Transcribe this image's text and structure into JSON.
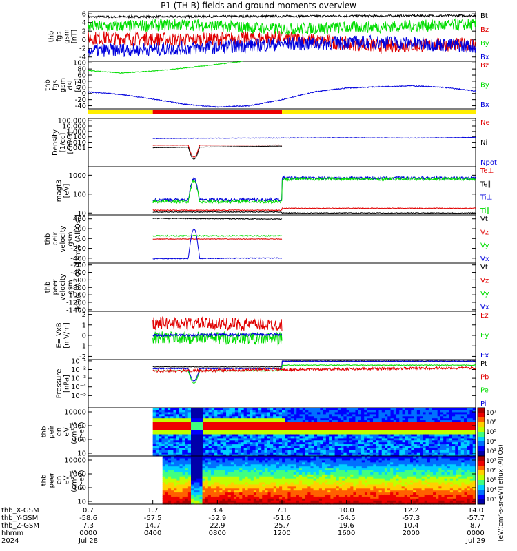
{
  "title": "P1 (TH-B) fields and ground moments overview",
  "colors": {
    "black": "#000000",
    "red": "#e00000",
    "green": "#00dd00",
    "blue": "#0000dd",
    "yellow": "#ffee00",
    "barred": "#ee0000"
  },
  "chart_data": [
    {
      "type": "line",
      "id": "fgs",
      "ylabel": [
        "thb",
        "fgs",
        "gsm",
        "[nT]"
      ],
      "ylim": [
        -5,
        6.5
      ],
      "ticks": [
        "6",
        "4",
        "2",
        "0",
        "-2",
        "-4"
      ],
      "tick_values": [
        6,
        4,
        2,
        0,
        -2,
        -4
      ],
      "legend": [
        {
          "label": "Bt",
          "color": "black"
        },
        {
          "label": "Bz",
          "color": "red"
        },
        {
          "label": "By",
          "color": "green"
        },
        {
          "label": "Bx",
          "color": "blue"
        }
      ],
      "series": [
        {
          "name": "Bt",
          "color": "black",
          "x": [
            0,
            24
          ],
          "y": [
            5.3,
            5.6
          ]
        },
        {
          "name": "Bz",
          "color": "red",
          "x": [
            0,
            6,
            12,
            18,
            24
          ],
          "y": [
            0.5,
            0.0,
            0.5,
            -1.5,
            -1.0
          ]
        },
        {
          "name": "By",
          "color": "green",
          "x": [
            0,
            6,
            12,
            18,
            24
          ],
          "y": [
            3.0,
            3.5,
            2.5,
            3.0,
            3.5
          ]
        },
        {
          "name": "Bx",
          "color": "blue",
          "x": [
            0,
            6,
            12,
            18,
            24
          ],
          "y": [
            -2.5,
            -2.0,
            -1.0,
            -0.5,
            -1.5
          ]
        }
      ]
    },
    {
      "type": "line",
      "id": "fgs-dsl",
      "ylabel": [
        "thb",
        "fgs",
        "gsm",
        "dsl",
        "[nT]"
      ],
      "ylim": [
        -50,
        105
      ],
      "ticks": [
        "100",
        "80",
        "60",
        "40",
        "20",
        "0",
        "-20",
        "-40"
      ],
      "tick_values": [
        100,
        80,
        60,
        40,
        20,
        0,
        -20,
        -40
      ],
      "legend": [
        {
          "label": "Bz",
          "color": "red"
        },
        {
          "label": "By",
          "color": "green"
        },
        {
          "label": "Bx",
          "color": "blue"
        }
      ],
      "series": [
        {
          "name": "By",
          "color": "green",
          "x": [
            0,
            2,
            4,
            6,
            8,
            9.6
          ],
          "y": [
            75,
            67,
            73,
            83,
            95,
            105
          ]
        },
        {
          "name": "Bx",
          "color": "blue",
          "x": [
            0,
            2,
            4,
            6,
            8,
            10,
            12,
            14,
            16,
            18,
            20,
            22,
            24
          ],
          "y": [
            5,
            -3,
            -18,
            -35,
            -44,
            -40,
            -20,
            5,
            18,
            22,
            25,
            20,
            8
          ]
        }
      ]
    },
    {
      "type": "line",
      "id": "density",
      "ylabel": [
        "Density",
        "[1/cc]",
        "[cm-3]"
      ],
      "log": true,
      "ylim": [
        -3.5,
        5.4
      ],
      "ticks": [
        "100.000",
        "10.000",
        "1.000",
        "0.100",
        "0.010",
        "0.001"
      ],
      "tick_values": [
        5,
        4,
        3,
        2,
        1,
        0
      ],
      "tick_offset": -3,
      "legend": [
        {
          "label": "Ne",
          "color": "red"
        },
        {
          "label": "Ni",
          "color": "black"
        },
        {
          "label": "Npot",
          "color": "blue"
        }
      ],
      "series": [
        {
          "name": "Npot",
          "color": "blue",
          "x": [
            4,
            7,
            12,
            16,
            20,
            24
          ],
          "y": [
            1.7,
            1.75,
            1.8,
            1.85,
            1.8,
            1.9
          ]
        },
        {
          "name": "Ne",
          "color": "red",
          "x": [
            4,
            12
          ],
          "y": [
            0.45,
            0.5
          ]
        },
        {
          "name": "Ni",
          "color": "black",
          "x": [
            4,
            12
          ],
          "y": [
            0.0,
            0.3
          ]
        }
      ]
    },
    {
      "type": "line",
      "id": "temp",
      "ylabel": [
        "magt3",
        "[eV]"
      ],
      "log": true,
      "ylim": [
        0.9,
        3.45
      ],
      "ticks": [
        "1000",
        "100",
        "10"
      ],
      "tick_values": [
        3,
        2,
        1
      ],
      "legend": [
        {
          "label": "Te⊥",
          "color": "red"
        },
        {
          "label": "Te∥",
          "color": "black"
        },
        {
          "label": "Ti⊥",
          "color": "blue"
        },
        {
          "label": "Ti∥",
          "color": "green"
        }
      ],
      "series": [
        {
          "name": "Ti⊥",
          "color": "blue",
          "x": [
            4,
            12,
            12,
            24
          ],
          "y": [
            1.7,
            1.7,
            2.85,
            2.85
          ]
        },
        {
          "name": "Ti∥",
          "color": "green",
          "x": [
            4,
            12,
            12,
            24
          ],
          "y": [
            1.6,
            1.6,
            2.8,
            2.8
          ]
        },
        {
          "name": "Te⊥",
          "color": "red",
          "x": [
            4,
            12,
            12,
            24
          ],
          "y": [
            1.15,
            1.15,
            1.25,
            1.25
          ]
        },
        {
          "name": "Te∥",
          "color": "black",
          "x": [
            4,
            12,
            12,
            24
          ],
          "y": [
            1.05,
            1.05,
            1.0,
            1.0
          ]
        }
      ]
    },
    {
      "type": "line",
      "id": "peir",
      "ylabel": [
        "thb",
        "peir",
        "velocity",
        "gsm",
        "[km/s (All Qs)]"
      ],
      "ylim": [
        -500,
        480
      ],
      "ticks": [
        "400",
        "200",
        "0",
        "-200",
        "-400"
      ],
      "tick_values": [
        400,
        200,
        0,
        -200,
        -400
      ],
      "legend": [
        {
          "label": "Vt",
          "color": "black"
        },
        {
          "label": "Vz",
          "color": "red"
        },
        {
          "label": "Vy",
          "color": "green"
        },
        {
          "label": "Vx",
          "color": "blue"
        }
      ],
      "series": [
        {
          "name": "Vt",
          "color": "black",
          "x": [
            4,
            12
          ],
          "y": [
            410,
            395
          ]
        },
        {
          "name": "Vy",
          "color": "green",
          "x": [
            4,
            12
          ],
          "y": [
            55,
            55
          ]
        },
        {
          "name": "Vz",
          "color": "red",
          "x": [
            4,
            12
          ],
          "y": [
            -10,
            -10
          ]
        },
        {
          "name": "Vx",
          "color": "blue",
          "x": [
            4,
            12
          ],
          "y": [
            -410,
            -395
          ]
        }
      ]
    },
    {
      "type": "line",
      "id": "peer",
      "ylabel": [
        "thb",
        "peer",
        "velocity",
        "gsm",
        "[km/s (All Qs)]"
      ],
      "ylim": [
        -1440,
        -150
      ],
      "ticks": [
        "-200",
        "-400",
        "-600",
        "-800",
        "-1000",
        "-1200",
        "-1400"
      ],
      "tick_values": [
        -200,
        -400,
        -600,
        -800,
        -1000,
        -1200,
        -1400
      ],
      "legend": [
        {
          "label": "Vt",
          "color": "black"
        },
        {
          "label": "Vz",
          "color": "red"
        },
        {
          "label": "Vy",
          "color": "green"
        },
        {
          "label": "Vx",
          "color": "blue"
        }
      ],
      "series": []
    },
    {
      "type": "line",
      "id": "efield",
      "ylabel": [
        "E=-VxB",
        "[mV/m]"
      ],
      "ylim": [
        -2.3,
        2.3
      ],
      "ticks": [
        "2",
        "1",
        "0",
        "-1",
        "-2"
      ],
      "tick_values": [
        2,
        1,
        0,
        -1,
        -2
      ],
      "legend": [
        {
          "label": "Ez",
          "color": "red"
        },
        {
          "label": "Ey",
          "color": "green"
        },
        {
          "label": "Ex",
          "color": "blue"
        }
      ],
      "series": [
        {
          "name": "Ez",
          "color": "red",
          "x": [
            4,
            12
          ],
          "y": [
            1.2,
            1.0
          ]
        },
        {
          "name": "Ey",
          "color": "green",
          "x": [
            4,
            12
          ],
          "y": [
            -0.2,
            -0.3
          ]
        },
        {
          "name": "Ex",
          "color": "blue",
          "x": [
            4,
            12
          ],
          "y": [
            0.0,
            0.1
          ]
        }
      ]
    },
    {
      "type": "line",
      "id": "pressure",
      "ylabel": [
        "Pressure",
        "[nPa]"
      ],
      "log": true,
      "ylim": [
        -6.4,
        -0.85
      ],
      "ticks": [
        "10⁻¹",
        "10⁻²",
        "10⁻³",
        "10⁻⁴",
        "10⁻⁵"
      ],
      "tick_values": [
        -1,
        -2,
        -3,
        -4,
        -5
      ],
      "legend": [
        {
          "label": "Pt",
          "color": "black"
        },
        {
          "label": "Pb",
          "color": "red"
        },
        {
          "label": "Pe",
          "color": "green"
        },
        {
          "label": "Pi",
          "color": "blue"
        }
      ],
      "series": [
        {
          "name": "Pt",
          "color": "black",
          "x": [
            4,
            12,
            12,
            24
          ],
          "y": [
            -1.7,
            -1.7,
            -1.0,
            -1.0
          ]
        },
        {
          "name": "Pi",
          "color": "blue",
          "x": [
            4,
            12,
            12,
            24
          ],
          "y": [
            -1.9,
            -1.9,
            -1.05,
            -1.05
          ]
        },
        {
          "name": "Pe",
          "color": "green",
          "x": [
            4,
            12,
            12,
            24
          ],
          "y": [
            -2.15,
            -2.15,
            -1.5,
            -1.5
          ]
        },
        {
          "name": "Pb",
          "color": "red",
          "x": [
            4,
            12,
            24
          ],
          "y": [
            -2.2,
            -2.0,
            -1.8
          ]
        }
      ]
    },
    {
      "type": "heatmap",
      "id": "peir-spec",
      "ylabel": [
        "thb",
        "peir",
        "en",
        "eV",
        "(cm²-s-",
        "sr-eV)"
      ],
      "log": true,
      "ylim": [
        0.8,
        4.3
      ],
      "ticks": [
        "10000",
        "1000",
        "100",
        "10"
      ],
      "tick_values": [
        4,
        3,
        2,
        1
      ]
    },
    {
      "type": "heatmap",
      "id": "peer-spec",
      "ylabel": [
        "thb",
        "peer",
        "en",
        "eV",
        "(cm²-s-",
        "sr-eV)"
      ],
      "log": true,
      "ylim": [
        0.8,
        4.3
      ],
      "ticks": [
        "10000",
        "1000",
        "100",
        "10"
      ],
      "tick_values": [
        4,
        3,
        2,
        1
      ]
    }
  ],
  "colorbar": {
    "ticks": [
      "10⁷",
      "10⁶",
      "10⁵",
      "10⁴",
      "10³"
    ],
    "title": "[eV/(cm²-s-sr-eV)] eflux (All Qs)"
  },
  "mode_bar": [
    {
      "from": 0,
      "to": 4,
      "color": "yellow"
    },
    {
      "from": 4,
      "to": 12,
      "color": "barred"
    },
    {
      "from": 12,
      "to": 24,
      "color": "yellow"
    }
  ],
  "x_axis": {
    "range_hours": [
      0,
      24
    ],
    "ticks_hours": [
      0,
      4,
      8,
      12,
      16,
      20,
      24
    ],
    "rows": [
      {
        "label": "thb_X-GSM",
        "values": [
          "0.7",
          "1.7",
          "3.4",
          "7.1",
          "10.0",
          "12.2",
          "14.0"
        ]
      },
      {
        "label": "thb_Y-GSM",
        "values": [
          "-58.6",
          "-57.5",
          "-52.9",
          "-51.6",
          "-54.5",
          "-57.3",
          "-57.7"
        ]
      },
      {
        "label": "thb_Z-GSM",
        "values": [
          "7.3",
          "14.7",
          "22.9",
          "25.7",
          "19.6",
          "10.4",
          "8.7"
        ]
      },
      {
        "label": "hhmm",
        "values": [
          "0000",
          "0400",
          "0800",
          "1200",
          "1600",
          "2000",
          "0000"
        ]
      },
      {
        "label": "2024",
        "values": [
          "Jul 28",
          "",
          "",
          "",
          "",
          "",
          "Jul 29"
        ]
      }
    ]
  }
}
